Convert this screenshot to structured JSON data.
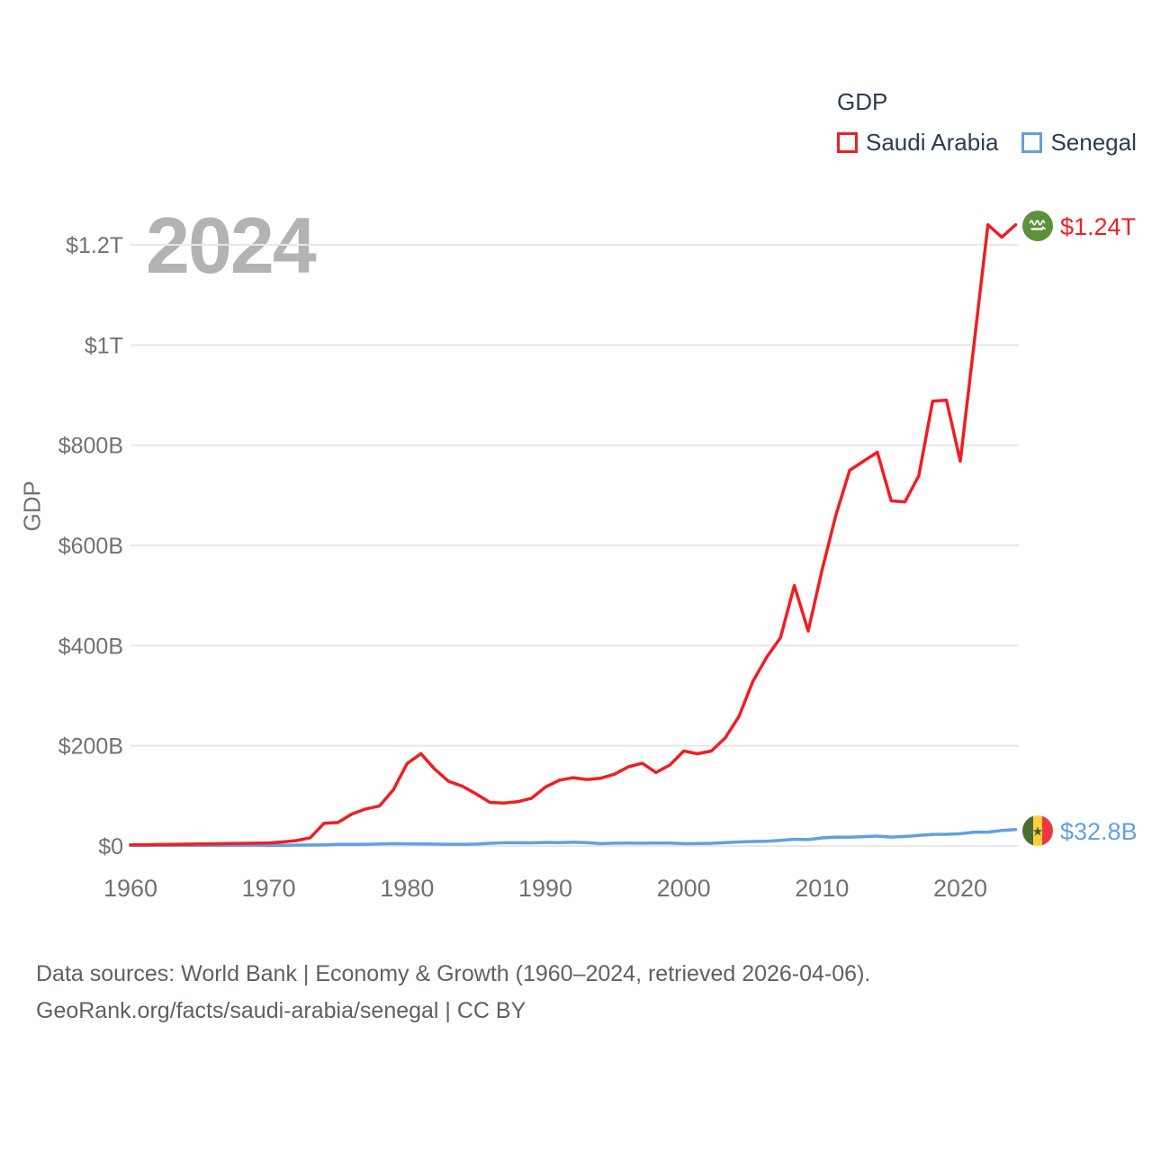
{
  "legend": {
    "title": "GDP",
    "items": [
      {
        "label": "Saudi Arabia",
        "color": "#f01e23"
      },
      {
        "label": "Senegal",
        "color": "#62a0e1"
      }
    ]
  },
  "watermark_year": "2024",
  "y_axis_title": "GDP",
  "end_labels": {
    "saudi_arabia": {
      "value": "$1.24T",
      "flag": "saudi-arabia-flag",
      "color": "#f01e23"
    },
    "senegal": {
      "value": "$32.8B",
      "flag": "senegal-flag",
      "color": "#62a0e1"
    }
  },
  "footer": {
    "line1": "Data sources: World Bank | Economy & Growth (1960–2024, retrieved 2026-04-06).",
    "line2": "GeoRank.org/facts/saudi-arabia/senegal | CC BY"
  },
  "chart_data": {
    "type": "line",
    "title": "GDP",
    "ylabel": "GDP",
    "xlabel": "",
    "values_unit": "billion USD",
    "ylim": [
      0,
      1200
    ],
    "grid": "horizontal",
    "legend_position": "top-right",
    "x_ticks": [
      1960,
      1970,
      1980,
      1990,
      2000,
      2010,
      2020
    ],
    "y_ticks": [
      {
        "value": 0,
        "label": "$0"
      },
      {
        "value": 200,
        "label": "$200B"
      },
      {
        "value": 400,
        "label": "$400B"
      },
      {
        "value": 600,
        "label": "$600B"
      },
      {
        "value": 800,
        "label": "$800B"
      },
      {
        "value": 1000,
        "label": "$1T"
      },
      {
        "value": 1200,
        "label": "$1.2T"
      }
    ],
    "x": [
      1960,
      1961,
      1962,
      1963,
      1964,
      1965,
      1966,
      1967,
      1968,
      1969,
      1970,
      1971,
      1972,
      1973,
      1974,
      1975,
      1976,
      1977,
      1978,
      1979,
      1980,
      1981,
      1982,
      1983,
      1984,
      1985,
      1986,
      1987,
      1988,
      1989,
      1990,
      1991,
      1992,
      1993,
      1994,
      1995,
      1996,
      1997,
      1998,
      1999,
      2000,
      2001,
      2002,
      2003,
      2004,
      2005,
      2006,
      2007,
      2008,
      2009,
      2010,
      2011,
      2012,
      2013,
      2014,
      2015,
      2016,
      2017,
      2018,
      2019,
      2020,
      2021,
      2022,
      2023,
      2024
    ],
    "series": [
      {
        "name": "Saudi Arabia",
        "color": "#f01e23",
        "end_label": "$1.24T",
        "values": [
          2.4,
          2.6,
          2.9,
          3.2,
          3.6,
          4.0,
          4.4,
          4.8,
          5.2,
          5.6,
          6.1,
          8.0,
          10.7,
          16.5,
          45.4,
          46.8,
          63.8,
          73.8,
          79.7,
          111.9,
          164.5,
          184.3,
          153.2,
          129.2,
          119.3,
          103.9,
          87.0,
          85.7,
          88.3,
          95.3,
          117.5,
          131.3,
          136.3,
          132.8,
          135.2,
          143.3,
          158.1,
          165.0,
          146.8,
          161.7,
          189.5,
          184.1,
          189.6,
          215.8,
          258.7,
          328.5,
          376.9,
          415.9,
          519.8,
          429.1,
          550.0,
          660.0,
          750.0,
          768.0,
          786.0,
          689.0,
          687.0,
          739.0,
          888.0,
          890.0,
          768.0,
          1004.0,
          1240.0,
          1215.0,
          1240.0
        ]
      },
      {
        "name": "Senegal",
        "color": "#62a0e1",
        "end_label": "$32.8B",
        "values": [
          1.0,
          1.1,
          1.2,
          1.3,
          1.4,
          1.4,
          1.5,
          1.5,
          1.6,
          1.6,
          1.4,
          1.5,
          1.8,
          2.0,
          2.4,
          3.1,
          3.3,
          3.5,
          4.0,
          4.7,
          4.3,
          4.0,
          3.8,
          3.5,
          3.4,
          3.8,
          5.3,
          6.4,
          6.4,
          6.2,
          7.2,
          6.9,
          7.6,
          6.8,
          4.6,
          5.6,
          5.8,
          5.5,
          5.9,
          6.0,
          4.7,
          4.9,
          5.3,
          6.9,
          8.0,
          8.9,
          9.4,
          11.3,
          13.4,
          12.8,
          16.1,
          17.8,
          17.4,
          18.6,
          19.8,
          17.7,
          19.0,
          21.1,
          23.1,
          23.3,
          24.5,
          27.6,
          27.7,
          31.0,
          32.8
        ]
      }
    ]
  }
}
